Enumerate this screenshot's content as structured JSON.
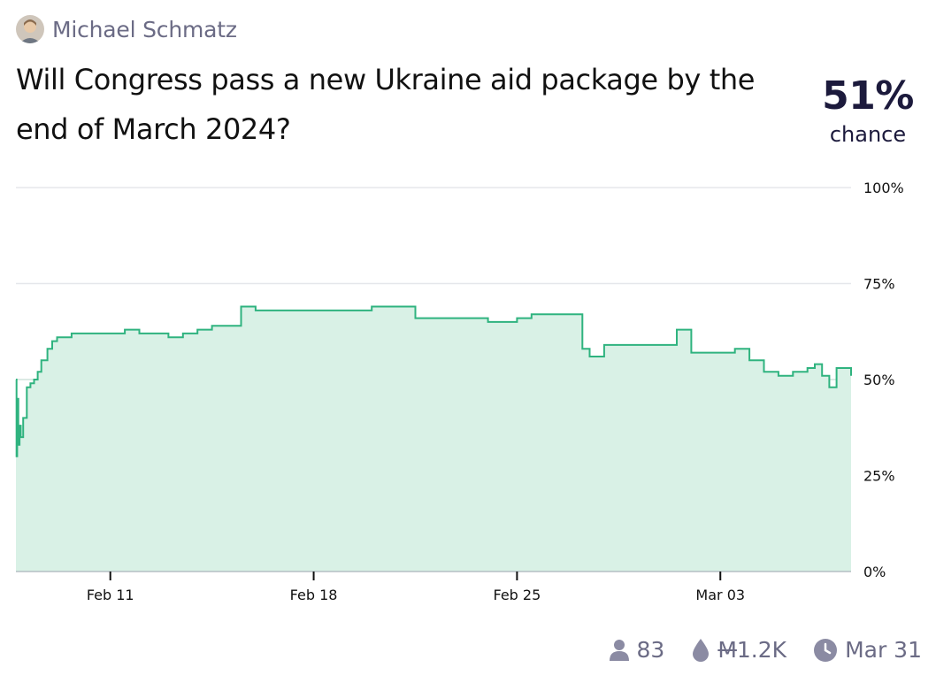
{
  "author": {
    "name": "Michael Schmatz"
  },
  "question": {
    "title": "Will Congress pass a new Ukraine aid package by the end of March 2024?"
  },
  "probability": {
    "value": "51%",
    "label": "chance"
  },
  "footer": {
    "traders": "83",
    "volume_currency": "M",
    "volume_amount": "1.2K",
    "close_date": "Mar 31",
    "icons": [
      "person-icon",
      "droplet-icon",
      "clock-icon"
    ]
  },
  "colors": {
    "line": "#2fb37f",
    "fill": "#d9f1e6",
    "grid": "#e5e7eb",
    "accent_text": "#1c1a3c",
    "muted_text": "#6b6b85"
  },
  "chart_data": {
    "type": "area",
    "title": "",
    "xlabel": "",
    "ylabel": "",
    "x_ticks": [
      "Feb 11",
      "Feb 18",
      "Feb 25",
      "Mar 03"
    ],
    "y_ticks": [
      "0%",
      "25%",
      "50%",
      "75%",
      "100%"
    ],
    "ylim": [
      0,
      100
    ],
    "xlim": [
      "2024-02-07T18:00",
      "2024-03-07T12:00"
    ],
    "grid": true,
    "series": [
      {
        "x": [
          "2024-02-07T18:00",
          "2024-02-07T18:30",
          "2024-02-07T19:00",
          "2024-02-07T20:00",
          "2024-02-07T21:00",
          "2024-02-07T22:00",
          "2024-02-08T00:00",
          "2024-02-08T03:00",
          "2024-02-08T06:00",
          "2024-02-08T09:00",
          "2024-02-08T12:00",
          "2024-02-08T15:00",
          "2024-02-08T20:00",
          "2024-02-09T00:00",
          "2024-02-09T04:00",
          "2024-02-09T10:00",
          "2024-02-09T16:00",
          "2024-02-10T00:00",
          "2024-02-10T12:00",
          "2024-02-11T00:00",
          "2024-02-11T12:00",
          "2024-02-12T00:00",
          "2024-02-12T12:00",
          "2024-02-13T00:00",
          "2024-02-13T12:00",
          "2024-02-14T00:00",
          "2024-02-14T12:00",
          "2024-02-15T00:00",
          "2024-02-15T12:00",
          "2024-02-16T00:00",
          "2024-02-16T12:00",
          "2024-02-17T00:00",
          "2024-02-18T00:00",
          "2024-02-19T00:00",
          "2024-02-20T00:00",
          "2024-02-21T00:00",
          "2024-02-21T12:00",
          "2024-02-22T00:00",
          "2024-02-23T00:00",
          "2024-02-24T00:00",
          "2024-02-24T12:00",
          "2024-02-25T00:00",
          "2024-02-25T12:00",
          "2024-02-26T00:00",
          "2024-02-27T00:00",
          "2024-02-27T06:00",
          "2024-02-27T12:00",
          "2024-02-28T00:00",
          "2024-02-29T00:00",
          "2024-03-01T00:00",
          "2024-03-01T12:00",
          "2024-03-02T00:00",
          "2024-03-02T12:00",
          "2024-03-03T00:00",
          "2024-03-03T12:00",
          "2024-03-04T00:00",
          "2024-03-04T12:00",
          "2024-03-05T00:00",
          "2024-03-05T06:00",
          "2024-03-05T12:00",
          "2024-03-06T00:00",
          "2024-03-06T06:00",
          "2024-03-06T12:00",
          "2024-03-06T18:00",
          "2024-03-07T00:00",
          "2024-03-07T12:00"
        ],
        "y": [
          50,
          30,
          45,
          33,
          38,
          35,
          40,
          48,
          49,
          50,
          52,
          55,
          58,
          60,
          61,
          61,
          62,
          62,
          62,
          62,
          63,
          62,
          62,
          61,
          62,
          63,
          64,
          64,
          69,
          68,
          68,
          68,
          68,
          68,
          69,
          69,
          66,
          66,
          66,
          65,
          65,
          66,
          67,
          67,
          67,
          58,
          56,
          59,
          59,
          59,
          63,
          57,
          57,
          57,
          58,
          55,
          52,
          51,
          51,
          52,
          53,
          54,
          51,
          48,
          53,
          51
        ]
      }
    ]
  }
}
